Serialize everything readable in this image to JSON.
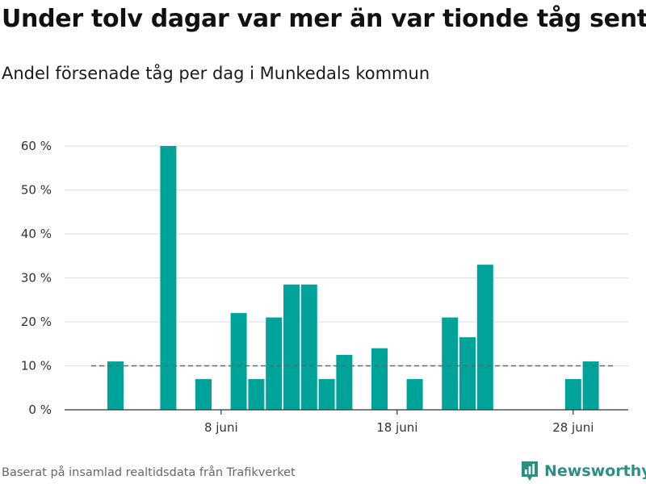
{
  "title": "Under tolv dagar var mer än var tionde tåg sent",
  "subtitle": "Andel försenade tåg per dag i Munkedals kommun",
  "footer": "Baserat på insamlad realtidsdata från Trafikverket",
  "brand": "Newsworthy",
  "colors": {
    "bar": "#00a39a",
    "grid": "#dddddd",
    "reference": "#666666",
    "brand": "#2b8f84"
  },
  "chart_data": {
    "type": "bar",
    "x_unit": "day of June",
    "categories": [
      1,
      2,
      3,
      4,
      5,
      6,
      7,
      8,
      9,
      10,
      11,
      12,
      13,
      14,
      15,
      16,
      17,
      18,
      19,
      20,
      21,
      22,
      23,
      24,
      25,
      26,
      27,
      28,
      29,
      30
    ],
    "values": [
      null,
      11,
      null,
      null,
      60,
      null,
      7,
      null,
      22,
      7,
      21,
      28.5,
      28.5,
      7,
      12.5,
      null,
      14,
      null,
      7,
      null,
      21,
      16.5,
      33,
      null,
      null,
      null,
      null,
      7,
      11,
      null
    ],
    "x_ticks": [
      {
        "day": 8,
        "label": "8 juni"
      },
      {
        "day": 18,
        "label": "18 juni"
      },
      {
        "day": 28,
        "label": "28 juni"
      }
    ],
    "y_ticks": [
      0,
      10,
      20,
      30,
      40,
      50,
      60
    ],
    "y_tick_suffix": " %",
    "ylim": [
      0,
      60
    ],
    "reference_line": 10,
    "grid": true
  }
}
